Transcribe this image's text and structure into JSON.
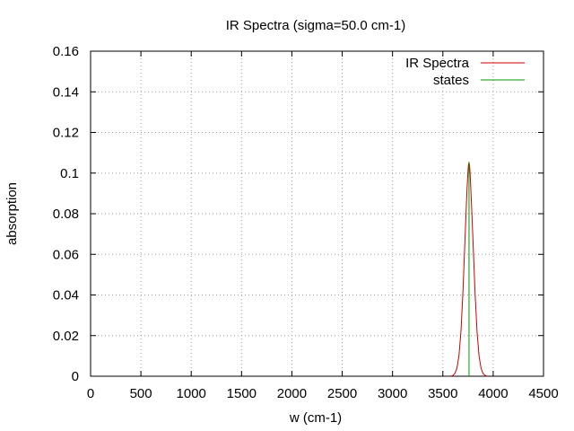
{
  "chart_data": {
    "type": "line",
    "title": "IR Spectra (sigma=50.0 cm-1)",
    "xlabel": "w (cm-1)",
    "ylabel": "absorption",
    "xlim": [
      0,
      4500
    ],
    "ylim": [
      0,
      0.16
    ],
    "x_ticks": [
      "0",
      "500",
      "1000",
      "1500",
      "2000",
      "2500",
      "3000",
      "3500",
      "4000",
      "4500"
    ],
    "y_ticks": [
      "0",
      "0.02",
      "0.04",
      "0.06",
      "0.08",
      "0.1",
      "0.12",
      "0.14",
      "0.16"
    ],
    "grid": true,
    "legend_position": "top-right",
    "series": [
      {
        "name": "IR Spectra",
        "kind": "line",
        "color": "#cc0000",
        "points": [
          [
            3580,
            0.0
          ],
          [
            3600,
            0.0004
          ],
          [
            3620,
            0.0014
          ],
          [
            3640,
            0.004
          ],
          [
            3660,
            0.0101
          ],
          [
            3680,
            0.0222
          ],
          [
            3700,
            0.042
          ],
          [
            3720,
            0.0675
          ],
          [
            3740,
            0.092
          ],
          [
            3750,
            0.101
          ],
          [
            3755,
            0.1045
          ],
          [
            3760,
            0.105
          ],
          [
            3765,
            0.104
          ],
          [
            3770,
            0.1005
          ],
          [
            3780,
            0.09
          ],
          [
            3800,
            0.066
          ],
          [
            3820,
            0.041
          ],
          [
            3840,
            0.0217
          ],
          [
            3860,
            0.0098
          ],
          [
            3880,
            0.0038
          ],
          [
            3900,
            0.0013
          ],
          [
            3920,
            0.0004
          ],
          [
            3940,
            0.0
          ]
        ]
      },
      {
        "name": "states",
        "kind": "impulse",
        "color": "#009900",
        "points": [
          [
            3760,
            0.1055
          ]
        ]
      }
    ]
  }
}
